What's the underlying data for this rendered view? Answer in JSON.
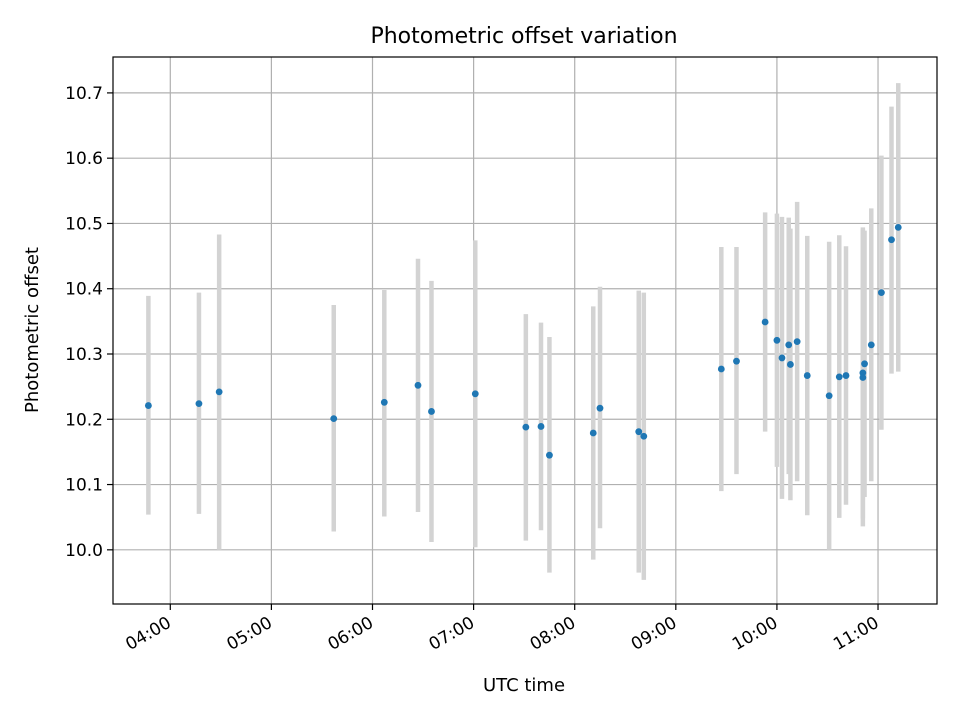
{
  "chart_data": {
    "type": "scatter",
    "title": "Photometric offset variation",
    "xlabel": "UTC time",
    "ylabel": "Photometric offset",
    "grid": true,
    "xlim": [
      "03:26",
      "11:35"
    ],
    "ylim": [
      9.917,
      10.755
    ],
    "x_ticks": [
      "04:00",
      "05:00",
      "06:00",
      "07:00",
      "08:00",
      "09:00",
      "10:00",
      "11:00"
    ],
    "y_ticks": [
      10.0,
      10.1,
      10.2,
      10.3,
      10.4,
      10.5,
      10.6,
      10.7
    ],
    "y_tick_labels": [
      "10.0",
      "10.1",
      "10.2",
      "10.3",
      "10.4",
      "10.5",
      "10.6",
      "10.7"
    ],
    "colors": {
      "points": "#1f77b4",
      "error_bars": "#d3d3d3",
      "grid": "#b0b0b0"
    },
    "series": [
      {
        "points": [
          {
            "x": "03:47",
            "y": 10.221,
            "low": 10.054,
            "high": 10.389
          },
          {
            "x": "04:17",
            "y": 10.224,
            "low": 10.055,
            "high": 10.394
          },
          {
            "x": "04:29",
            "y": 10.242,
            "low": 10.0,
            "high": 10.483
          },
          {
            "x": "05:37",
            "y": 10.201,
            "low": 10.028,
            "high": 10.375
          },
          {
            "x": "06:07",
            "y": 10.226,
            "low": 10.051,
            "high": 10.398
          },
          {
            "x": "06:27",
            "y": 10.252,
            "low": 10.058,
            "high": 10.446
          },
          {
            "x": "06:35",
            "y": 10.212,
            "low": 10.012,
            "high": 10.412
          },
          {
            "x": "07:01",
            "y": 10.239,
            "low": 10.004,
            "high": 10.474
          },
          {
            "x": "07:31",
            "y": 10.188,
            "low": 10.014,
            "high": 10.361
          },
          {
            "x": "07:40",
            "y": 10.189,
            "low": 10.03,
            "high": 10.348
          },
          {
            "x": "07:45",
            "y": 10.145,
            "low": 9.965,
            "high": 10.326
          },
          {
            "x": "08:11",
            "y": 10.179,
            "low": 9.985,
            "high": 10.373
          },
          {
            "x": "08:15",
            "y": 10.217,
            "low": 10.033,
            "high": 10.403
          },
          {
            "x": "08:38",
            "y": 10.181,
            "low": 9.965,
            "high": 10.397
          },
          {
            "x": "08:41",
            "y": 10.174,
            "low": 9.954,
            "high": 10.394
          },
          {
            "x": "09:27",
            "y": 10.277,
            "low": 10.09,
            "high": 10.464
          },
          {
            "x": "09:36",
            "y": 10.289,
            "low": 10.116,
            "high": 10.464
          },
          {
            "x": "09:53",
            "y": 10.349,
            "low": 10.181,
            "high": 10.517
          },
          {
            "x": "10:00",
            "y": 10.321,
            "low": 10.127,
            "high": 10.515
          },
          {
            "x": "10:03",
            "y": 10.294,
            "low": 10.078,
            "high": 10.51
          },
          {
            "x": "10:07",
            "y": 10.314,
            "low": 10.116,
            "high": 10.509
          },
          {
            "x": "10:08",
            "y": 10.284,
            "low": 10.076,
            "high": 10.492
          },
          {
            "x": "10:12",
            "y": 10.319,
            "low": 10.105,
            "high": 10.533
          },
          {
            "x": "10:18",
            "y": 10.267,
            "low": 10.053,
            "high": 10.481
          },
          {
            "x": "10:31",
            "y": 10.236,
            "low": 10.0,
            "high": 10.472
          },
          {
            "x": "10:37",
            "y": 10.265,
            "low": 10.049,
            "high": 10.482
          },
          {
            "x": "10:41",
            "y": 10.267,
            "low": 10.069,
            "high": 10.465
          },
          {
            "x": "10:51",
            "y": 10.271,
            "low": 10.048,
            "high": 10.494
          },
          {
            "x": "10:51",
            "y": 10.264,
            "low": 10.036,
            "high": 10.491
          },
          {
            "x": "10:52",
            "y": 10.285,
            "low": 10.081,
            "high": 10.489
          },
          {
            "x": "10:56",
            "y": 10.314,
            "low": 10.105,
            "high": 10.523
          },
          {
            "x": "11:02",
            "y": 10.394,
            "low": 10.184,
            "high": 10.604
          },
          {
            "x": "11:08",
            "y": 10.475,
            "low": 10.27,
            "high": 10.679
          },
          {
            "x": "11:12",
            "y": 10.494,
            "low": 10.273,
            "high": 10.715
          }
        ]
      }
    ]
  }
}
